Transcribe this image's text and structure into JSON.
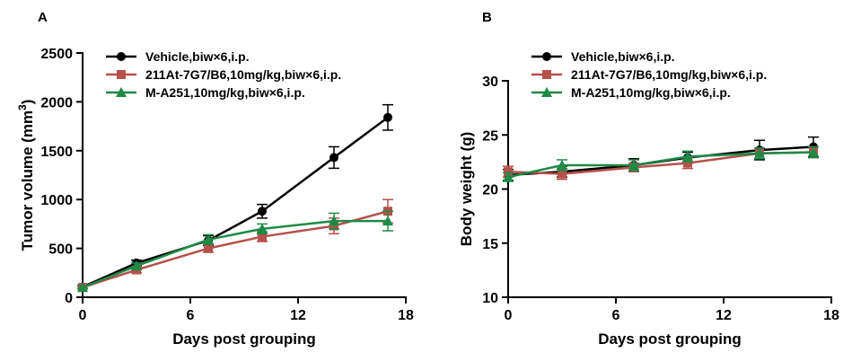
{
  "colors": {
    "vehicle": "#000000",
    "at211": "#b5504a",
    "ma251": "#1e8a46"
  },
  "chart_data": [
    {
      "type": "line",
      "panel_label": "A",
      "xlabel": "Days post grouping",
      "ylabel": "Tumor volume (mm3)",
      "xlim": [
        0,
        18
      ],
      "ylim": [
        0,
        2500
      ],
      "xticks": [
        0,
        6,
        12,
        18
      ],
      "yticks": [
        0,
        500,
        1000,
        1500,
        2000,
        2500
      ],
      "grid": false,
      "legend_position": "top-left",
      "series": [
        {
          "name": "Vehicle,biw×6,i.p.",
          "color": "#000000",
          "marker": "circle",
          "x": [
            0,
            3,
            7,
            10,
            14,
            17
          ],
          "y": [
            105,
            350,
            580,
            880,
            1430,
            1840
          ],
          "err": [
            15,
            30,
            50,
            70,
            110,
            130
          ]
        },
        {
          "name": "211At-7G7/B6,10mg/kg,biw×6,i.p.",
          "color": "#b5504a",
          "marker": "square",
          "x": [
            0,
            3,
            7,
            10,
            14,
            17
          ],
          "y": [
            100,
            280,
            500,
            620,
            730,
            880
          ],
          "err": [
            15,
            30,
            40,
            50,
            80,
            120
          ]
        },
        {
          "name": "M-A251,10mg/kg,biw×6,i.p.",
          "color": "#1e8a46",
          "marker": "triangle",
          "x": [
            0,
            3,
            7,
            10,
            14,
            17
          ],
          "y": [
            100,
            320,
            590,
            700,
            780,
            780
          ],
          "err": [
            15,
            30,
            50,
            50,
            80,
            100
          ]
        }
      ]
    },
    {
      "type": "line",
      "panel_label": "B",
      "xlabel": "Days post grouping",
      "ylabel": "Body weight (g)",
      "xlim": [
        0,
        18
      ],
      "ylim": [
        10,
        30
      ],
      "xticks": [
        0,
        6,
        12,
        18
      ],
      "yticks": [
        10,
        15,
        20,
        25,
        30
      ],
      "grid": false,
      "legend_position": "top-left",
      "series": [
        {
          "name": "Vehicle,biw×6,i.p.",
          "color": "#000000",
          "marker": "circle",
          "x": [
            0,
            3,
            7,
            10,
            14,
            17
          ],
          "y": [
            21.3,
            21.6,
            22.2,
            22.9,
            23.6,
            23.9
          ],
          "err": [
            0.5,
            0.5,
            0.6,
            0.5,
            0.9,
            0.9
          ]
        },
        {
          "name": "211At-7G7/B6,10mg/kg,biw×6,i.p.",
          "color": "#b5504a",
          "marker": "square",
          "x": [
            0,
            3,
            7,
            10,
            14,
            17
          ],
          "y": [
            21.6,
            21.4,
            22.0,
            22.4,
            23.3,
            23.4
          ],
          "err": [
            0.5,
            0.5,
            0.4,
            0.5,
            0.5,
            0.5
          ]
        },
        {
          "name": "M-A251,10mg/kg,biw×6,i.p.",
          "color": "#1e8a46",
          "marker": "triangle",
          "x": [
            0,
            3,
            7,
            10,
            14,
            17
          ],
          "y": [
            21.1,
            22.2,
            22.2,
            23.0,
            23.3,
            23.4
          ],
          "err": [
            0.4,
            0.5,
            0.5,
            0.5,
            0.5,
            0.5
          ]
        }
      ]
    }
  ]
}
